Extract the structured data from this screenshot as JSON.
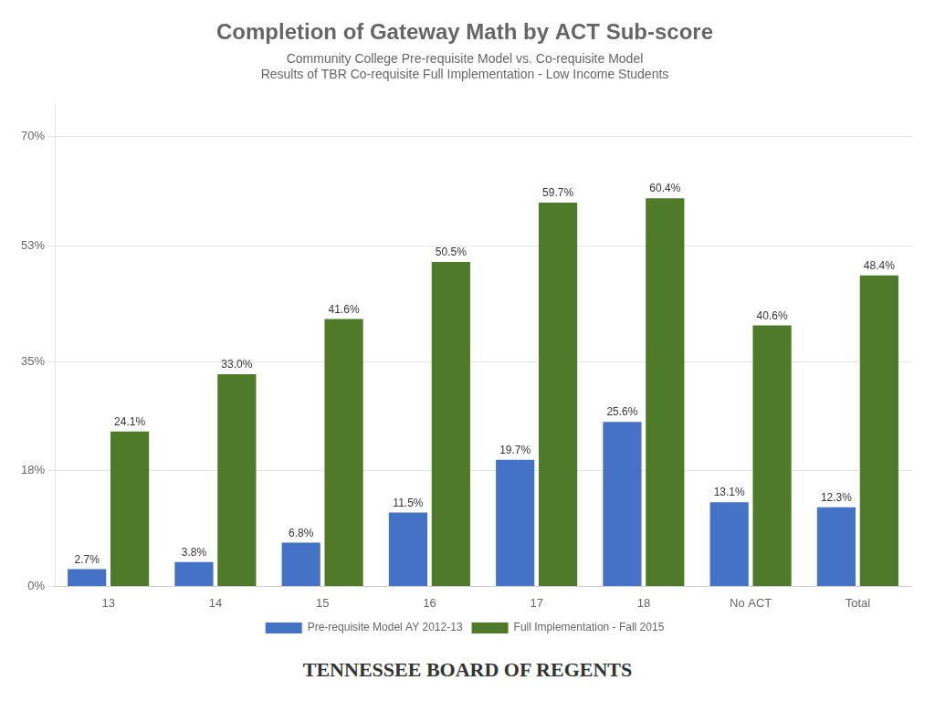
{
  "chart_data": {
    "type": "bar",
    "title": "Completion of Gateway Math by ACT Sub-score",
    "subtitle": [
      "Community College Pre-requisite Model vs. Co-requisite Model",
      "Results of TBR Co-requisite Full Implementation - Low Income Students"
    ],
    "annotations": [
      "TENNESSEE BOARD OF REGENTS"
    ],
    "categories": [
      "13",
      "14",
      "15",
      "16",
      "17",
      "18",
      "No ACT",
      "Total"
    ],
    "series": [
      {
        "name": "Pre-requisite Model AY 2012-13",
        "color": "#4472C4",
        "values": [
          2.7,
          3.8,
          6.8,
          11.5,
          19.7,
          25.6,
          13.1,
          12.3
        ],
        "value_labels": [
          "2.7%",
          "3.8%",
          "6.8%",
          "11.5%",
          "19.7%",
          "25.6%",
          "13.1%",
          "12.3%"
        ]
      },
      {
        "name": "Full Implementation - Fall 2015",
        "color": "#4E7A2A",
        "values": [
          24.1,
          33.0,
          41.6,
          50.5,
          59.7,
          60.4,
          40.6,
          48.4
        ],
        "value_labels": [
          "24.1%",
          "33.0%",
          "41.6%",
          "50.5%",
          "59.7%",
          "60.4%",
          "40.6%",
          "48.4%"
        ]
      }
    ],
    "ylim": [
      0,
      75
    ],
    "yticks": [
      {
        "value": 0,
        "label": "0%"
      },
      {
        "value": 18,
        "label": "18%"
      },
      {
        "value": 35,
        "label": "35%"
      },
      {
        "value": 53,
        "label": "53%"
      },
      {
        "value": 70,
        "label": "70%"
      }
    ],
    "grid": "y",
    "legend": "bottom",
    "data_labels": true
  }
}
